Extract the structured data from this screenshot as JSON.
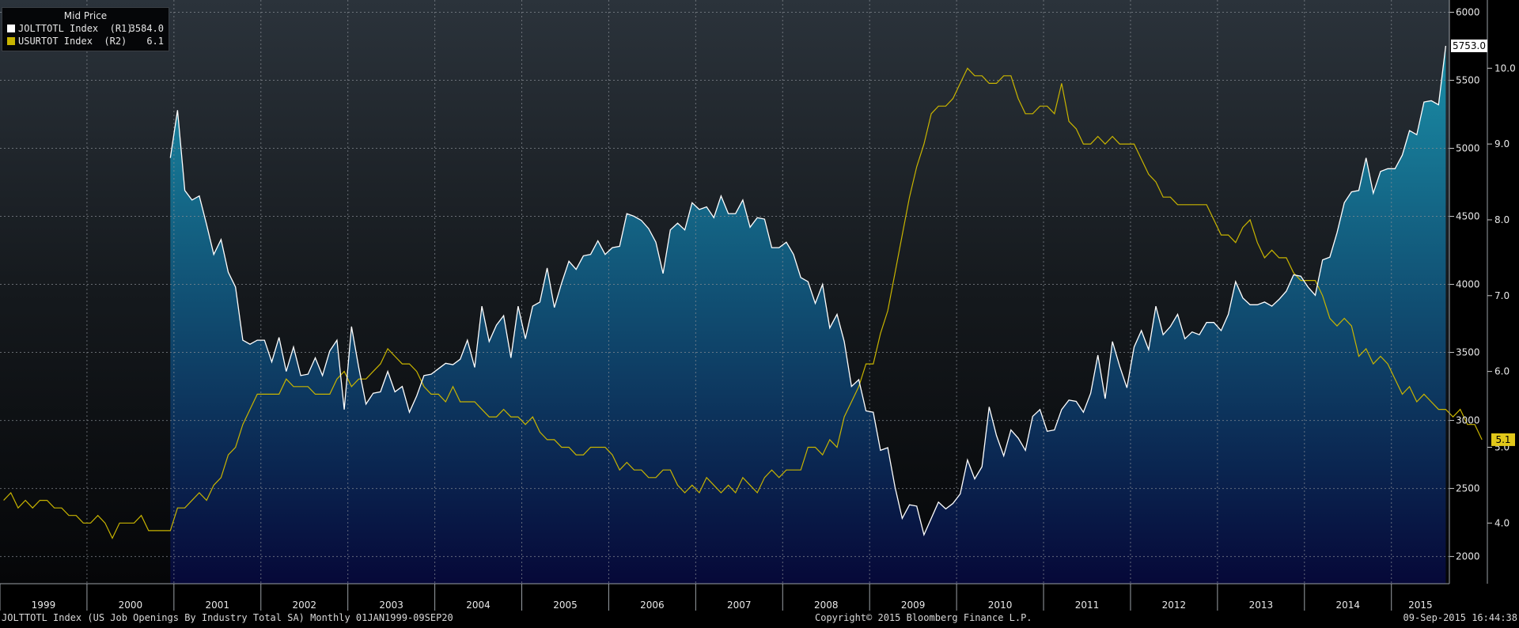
{
  "legend": {
    "title": "Mid Price",
    "items": [
      {
        "name": "JOLTTOTL Index  (R1)",
        "value": "3584.0",
        "color": "#ffffff"
      },
      {
        "name": "USURTOT Index  (R2)",
        "value": "6.1",
        "color": "#c8b400"
      }
    ]
  },
  "footer": {
    "left": "JOLTTOTL Index (US Job Openings By Industry Total SA)  Monthly 01JAN1999-09SEP20",
    "center": "Copyright© 2015 Bloomberg Finance L.P.",
    "right": "09-Sep-2015 16:44:38"
  },
  "chart_data": {
    "type": "area",
    "x_start": "1999-01",
    "x_end": "2015-08",
    "x_tick_labels": [
      "1999",
      "2000",
      "2001",
      "2002",
      "2003",
      "2004",
      "2005",
      "2006",
      "2007",
      "2008",
      "2009",
      "2010",
      "2011",
      "2012",
      "2013",
      "2014",
      "2015"
    ],
    "y1_ticks": [
      "2000",
      "2500",
      "3000",
      "3500",
      "4000",
      "4500",
      "5000",
      "5500",
      "6000"
    ],
    "y1lim": [
      1800,
      6090
    ],
    "y2_ticks": [
      "4.0",
      "5.0",
      "6.0",
      "7.0",
      "8.0",
      "9.0",
      "10.0"
    ],
    "y2lim": [
      3.2,
      10.9
    ],
    "last_labels": {
      "jolts": "5753.0",
      "unemployment": "5.1"
    },
    "colors": {
      "jolts_line": "#ffffff",
      "unemp_line": "#c8b400",
      "area_top": "#1a8fa8",
      "area_bottom": "#060838",
      "last_jolts_bg": "#ffffff",
      "last_unemp_bg": "#e2c81a"
    },
    "series": [
      {
        "name": "JOLTTOTL Index",
        "axis": "R1",
        "start": "2000-12",
        "values": [
          4930,
          5280,
          4690,
          4620,
          4650,
          4440,
          4220,
          4330,
          4090,
          3980,
          3590,
          3560,
          3590,
          3590,
          3430,
          3610,
          3360,
          3540,
          3330,
          3340,
          3460,
          3330,
          3510,
          3590,
          3080,
          3690,
          3390,
          3120,
          3200,
          3210,
          3360,
          3210,
          3250,
          3060,
          3180,
          3330,
          3340,
          3380,
          3420,
          3410,
          3450,
          3590,
          3390,
          3840,
          3580,
          3700,
          3770,
          3460,
          3840,
          3600,
          3840,
          3870,
          4120,
          3830,
          4010,
          4170,
          4110,
          4210,
          4220,
          4320,
          4220,
          4270,
          4280,
          4520,
          4500,
          4470,
          4410,
          4310,
          4080,
          4400,
          4450,
          4400,
          4600,
          4550,
          4570,
          4490,
          4650,
          4520,
          4520,
          4620,
          4420,
          4490,
          4480,
          4270,
          4270,
          4310,
          4220,
          4050,
          4020,
          3860,
          4000,
          3680,
          3780,
          3580,
          3250,
          3300,
          3070,
          3060,
          2780,
          2800,
          2510,
          2280,
          2380,
          2370,
          2160,
          2280,
          2400,
          2350,
          2390,
          2460,
          2710,
          2570,
          2660,
          3100,
          2890,
          2740,
          2930,
          2870,
          2780,
          3030,
          3080,
          2920,
          2930,
          3080,
          3150,
          3140,
          3060,
          3200,
          3480,
          3160,
          3580,
          3400,
          3240,
          3540,
          3660,
          3520,
          3840,
          3630,
          3690,
          3780,
          3600,
          3650,
          3630,
          3720,
          3720,
          3660,
          3780,
          4020,
          3900,
          3850,
          3850,
          3870,
          3840,
          3890,
          3950,
          4070,
          4060,
          3980,
          3920,
          4180,
          4200,
          4380,
          4600,
          4680,
          4690,
          4930,
          4670,
          4830,
          4850,
          4850,
          4950,
          5130,
          5100,
          5340,
          5350,
          5320,
          5753
        ]
      },
      {
        "name": "USURTOT Index",
        "axis": "R2",
        "start": "1999-01",
        "values": [
          4.3,
          4.4,
          4.2,
          4.3,
          4.2,
          4.3,
          4.3,
          4.2,
          4.2,
          4.1,
          4.1,
          4.0,
          4.0,
          4.1,
          4.0,
          3.8,
          4.0,
          4.0,
          4.0,
          4.1,
          3.9,
          3.9,
          3.9,
          3.9,
          4.2,
          4.2,
          4.3,
          4.4,
          4.3,
          4.5,
          4.6,
          4.9,
          5.0,
          5.3,
          5.5,
          5.7,
          5.7,
          5.7,
          5.7,
          5.9,
          5.8,
          5.8,
          5.8,
          5.7,
          5.7,
          5.7,
          5.9,
          6.0,
          5.8,
          5.9,
          5.9,
          6.0,
          6.1,
          6.3,
          6.2,
          6.1,
          6.1,
          6.0,
          5.8,
          5.7,
          5.7,
          5.6,
          5.8,
          5.6,
          5.6,
          5.6,
          5.5,
          5.4,
          5.4,
          5.5,
          5.4,
          5.4,
          5.3,
          5.4,
          5.2,
          5.1,
          5.1,
          5.0,
          5.0,
          4.9,
          4.9,
          5.0,
          5.0,
          5.0,
          4.9,
          4.7,
          4.8,
          4.7,
          4.7,
          4.6,
          4.6,
          4.7,
          4.7,
          4.5,
          4.4,
          4.5,
          4.4,
          4.6,
          4.5,
          4.4,
          4.5,
          4.4,
          4.6,
          4.5,
          4.4,
          4.6,
          4.7,
          4.6,
          4.7,
          4.7,
          4.7,
          5.0,
          5.0,
          4.9,
          5.1,
          5.0,
          5.4,
          5.6,
          5.8,
          6.1,
          6.1,
          6.5,
          6.8,
          7.3,
          7.8,
          8.3,
          8.7,
          9.0,
          9.4,
          9.5,
          9.5,
          9.6,
          9.8,
          10.0,
          9.9,
          9.9,
          9.8,
          9.8,
          9.9,
          9.9,
          9.6,
          9.4,
          9.4,
          9.5,
          9.5,
          9.4,
          9.8,
          9.3,
          9.2,
          9.0,
          9.0,
          9.1,
          9.0,
          9.1,
          9.0,
          9.0,
          9.0,
          8.8,
          8.6,
          8.5,
          8.3,
          8.3,
          8.2,
          8.2,
          8.2,
          8.2,
          8.2,
          8.0,
          7.8,
          7.8,
          7.7,
          7.9,
          8.0,
          7.7,
          7.5,
          7.6,
          7.5,
          7.5,
          7.3,
          7.2,
          7.2,
          7.2,
          7.0,
          6.7,
          6.6,
          6.7,
          6.6,
          6.2,
          6.3,
          6.1,
          6.2,
          6.1,
          5.9,
          5.7,
          5.8,
          5.6,
          5.7,
          5.6,
          5.5,
          5.5,
          5.4,
          5.5,
          5.3,
          5.3,
          5.1
        ]
      }
    ]
  }
}
